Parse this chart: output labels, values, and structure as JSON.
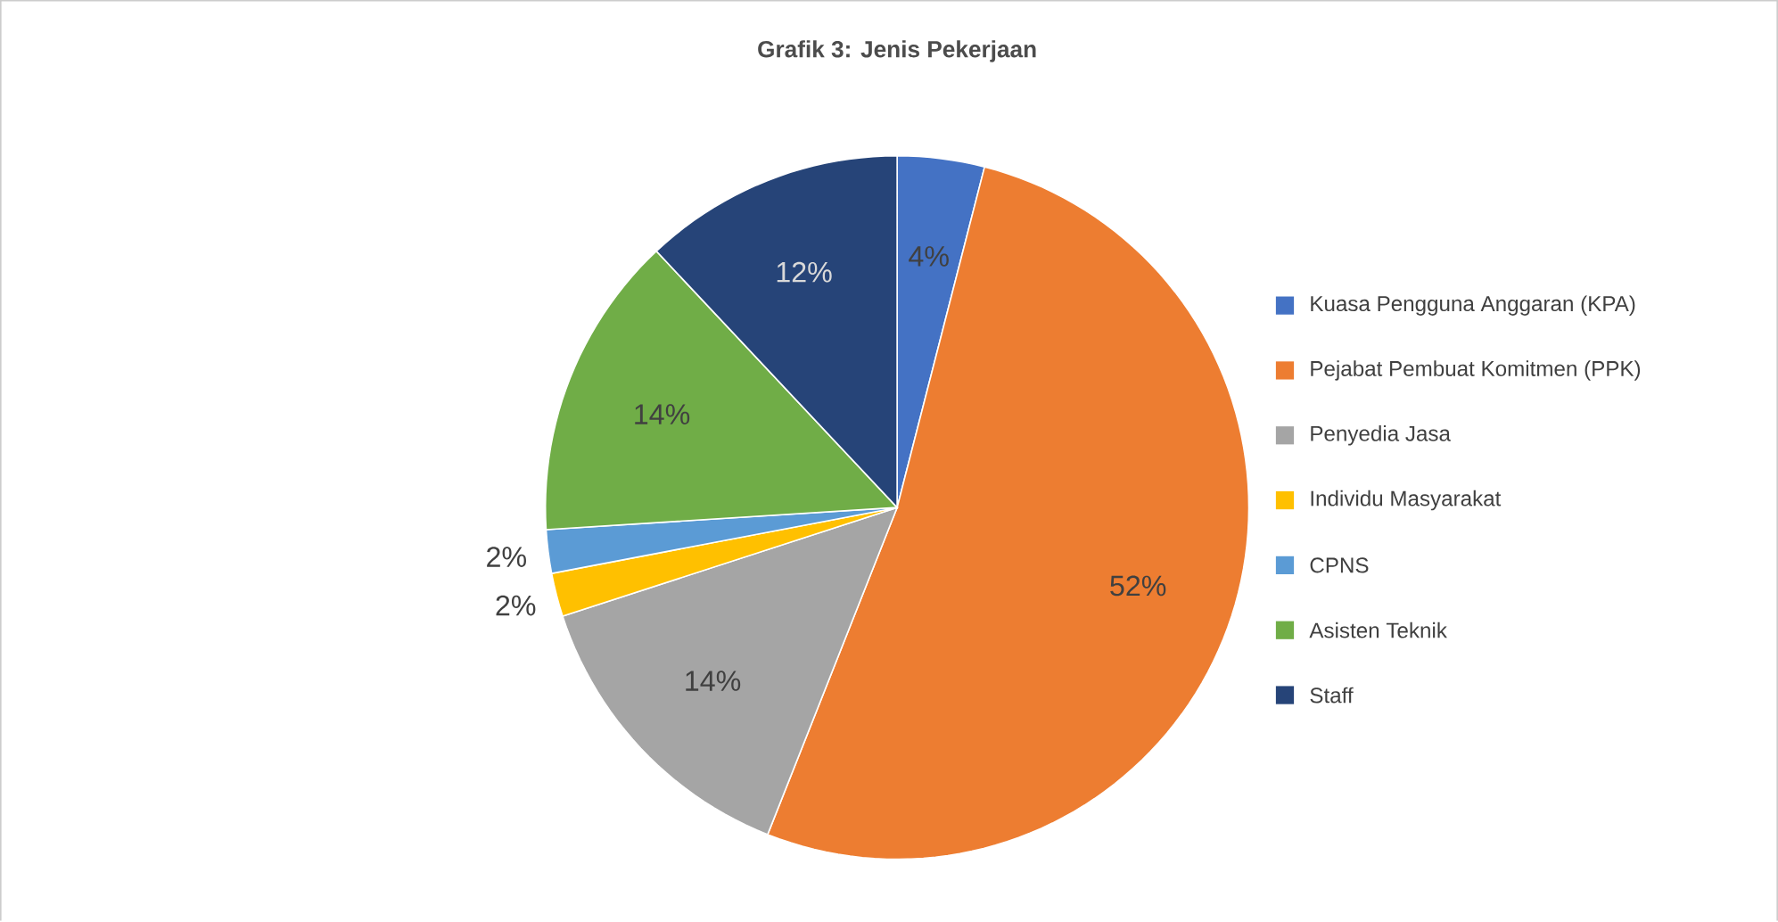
{
  "chart_data": {
    "type": "pie",
    "title": "Grafik 3: Jenis Pekerjaan",
    "categories": [
      "Kuasa Pengguna Anggaran (KPA)",
      "Pejabat Pembuat Komitmen (PPK)",
      "Penyedia Jasa",
      "Individu Masyarakat",
      "CPNS",
      "Asisten Teknik",
      "Staff"
    ],
    "values": [
      4,
      52,
      14,
      2,
      2,
      14,
      12
    ],
    "colors": [
      "#4472c4",
      "#ed7d31",
      "#a5a5a5",
      "#ffc000",
      "#5b9bd5",
      "#70ad47",
      "#264478"
    ],
    "value_labels": [
      "4%",
      "52%",
      "14%",
      "2%",
      "2%",
      "14%",
      "12%"
    ],
    "legend": "right"
  }
}
